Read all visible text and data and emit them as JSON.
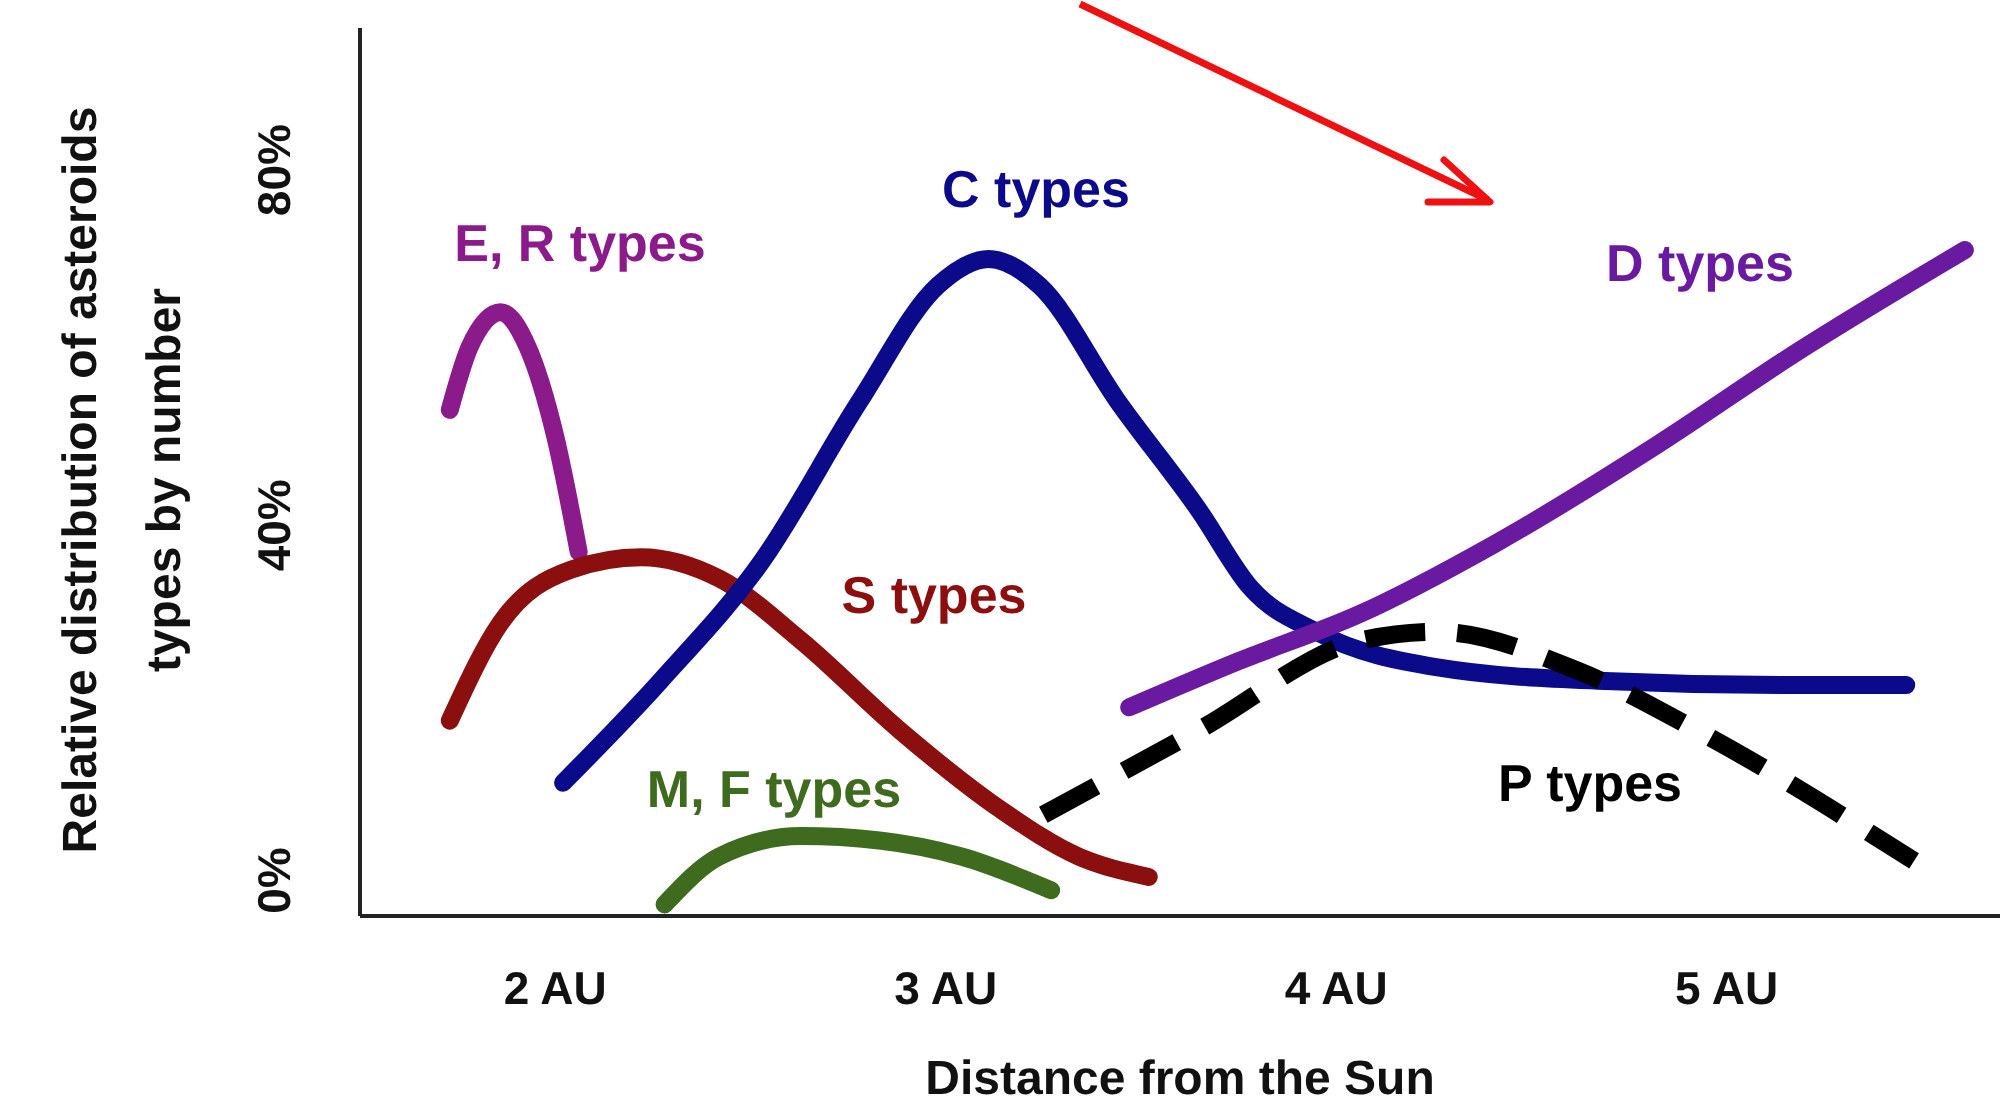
{
  "chart_data": {
    "type": "line",
    "xlabel": "Distance from the Sun",
    "ylabel": "Relative distribution of asteroids types by number",
    "xlim": [
      1.5,
      5.7
    ],
    "xticks": [
      {
        "value": 2,
        "label": "2 AU"
      },
      {
        "value": 3,
        "label": "3 AU"
      },
      {
        "value": 4,
        "label": "4 AU"
      },
      {
        "value": 5,
        "label": "5 AU"
      }
    ],
    "ylim": [
      -4,
      96
    ],
    "yticks": [
      {
        "value": 0,
        "label": "0%"
      },
      {
        "value": 40,
        "label": "40%"
      },
      {
        "value": 80,
        "label": "80%"
      }
    ],
    "grid": false,
    "legend": false,
    "marker": "none",
    "series": [
      {
        "name": "E, R types",
        "color": "#8b1a8b",
        "x": [
          1.73,
          1.78,
          1.86,
          1.93,
          2.0,
          2.06
        ],
        "values": [
          53,
          60,
          64,
          60,
          50,
          37
        ]
      },
      {
        "name": "S types",
        "color": "#8b0f0f",
        "x": [
          1.73,
          1.86,
          2.04,
          2.22,
          2.42,
          2.63,
          2.88,
          3.14,
          3.34,
          3.52
        ],
        "values": [
          18,
          29,
          35,
          36.4,
          34,
          27,
          17,
          8,
          2.7,
          0.4
        ]
      },
      {
        "name": "C types",
        "color": "#0a0a8a",
        "x": [
          2.02,
          2.27,
          2.53,
          2.78,
          2.98,
          3.11,
          3.24,
          3.44,
          3.65,
          3.78,
          3.95,
          4.26,
          4.67,
          5.18,
          5.46
        ],
        "values": [
          11,
          22.5,
          36,
          54,
          67,
          70,
          67,
          54,
          41.6,
          33,
          28,
          24,
          22.5,
          22,
          22
        ]
      },
      {
        "name": "M, F types",
        "color": "#3f6b1f",
        "x": [
          2.28,
          2.42,
          2.63,
          2.83,
          3.04,
          3.27
        ],
        "values": [
          -2.7,
          2.7,
          5,
          4.5,
          2.7,
          -1.1
        ]
      },
      {
        "name": "D types",
        "color": "#6a1aa0",
        "x": [
          3.47,
          3.75,
          4.06,
          4.41,
          4.82,
          5.18,
          5.61
        ],
        "values": [
          19.5,
          24.7,
          30,
          38,
          49,
          59.5,
          71
        ]
      },
      {
        "name": "P types",
        "color": "#000000",
        "line_style": "dashed",
        "x": [
          3.25,
          3.65,
          4.06,
          4.26,
          4.62,
          4.92,
          5.48
        ],
        "values": [
          7.4,
          17,
          27,
          28,
          23.6,
          17,
          2.2
        ]
      }
    ]
  }
}
